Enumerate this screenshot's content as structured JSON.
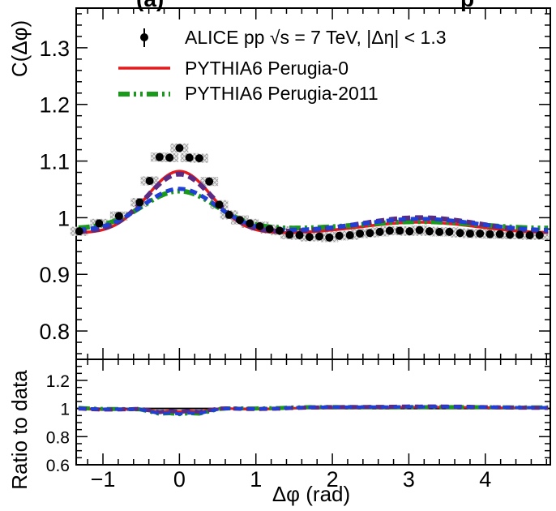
{
  "chart_data": {
    "type": "line",
    "title": "(a)",
    "title_suffix": "p",
    "xlabel": "Δφ (rad)",
    "ylabel": "C(Δφ)",
    "ylabel_ratio": "Ratio to data",
    "xlim": [
      -1.35,
      4.85
    ],
    "ylim": [
      0.75,
      1.37
    ],
    "ylim_ratio": [
      0.6,
      1.35
    ],
    "grid": false,
    "legend_position": "top",
    "xticks": [
      -1,
      0,
      1,
      2,
      3,
      4
    ],
    "xtick_labels": [
      "−1",
      "0",
      "1",
      "2",
      "3",
      "4"
    ],
    "yticks": [
      0.8,
      0.9,
      1.0,
      1.1,
      1.2,
      1.3
    ],
    "ytick_labels": [
      "0.8",
      "0.9",
      "1",
      "1.1",
      "1.2",
      "1.3"
    ],
    "yticks_ratio": [
      0.6,
      0.8,
      1.0,
      1.2
    ],
    "ytick_labels_ratio": [
      "0.6",
      "0.8",
      "1",
      "1.2"
    ],
    "legend": [
      {
        "label": "ALICE pp √s = 7 TeV, |Δη| < 1.3",
        "style": "marker",
        "color": "#000000"
      },
      {
        "label": "PYTHIA6 Perugia-0",
        "style": "solid",
        "color": "#e41a1c"
      },
      {
        "label": "PYTHIA6 Perugia-2011",
        "style": "dashdot",
        "color": "#1a9a1a"
      }
    ],
    "data": {
      "name": "ALICE pp √s = 7 TeV, |Δη| < 1.3",
      "x": [
        -1.31,
        -1.05,
        -0.79,
        -0.52,
        -0.39,
        -0.26,
        -0.13,
        0.0,
        0.13,
        0.26,
        0.39,
        0.52,
        0.65,
        0.79,
        0.92,
        1.05,
        1.18,
        1.31,
        1.44,
        1.57,
        1.7,
        1.83,
        1.96,
        2.09,
        2.23,
        2.36,
        2.49,
        2.62,
        2.75,
        2.88,
        3.01,
        3.14,
        3.27,
        3.4,
        3.53,
        3.67,
        3.8,
        3.93,
        4.06,
        4.19,
        4.32,
        4.45,
        4.58,
        4.71
      ],
      "y": [
        0.976,
        0.99,
        1.003,
        1.027,
        1.065,
        1.107,
        1.106,
        1.123,
        1.106,
        1.105,
        1.064,
        1.023,
        1.005,
        0.996,
        0.99,
        0.985,
        0.98,
        0.977,
        0.97,
        0.969,
        0.966,
        0.967,
        0.965,
        0.968,
        0.969,
        0.972,
        0.973,
        0.975,
        0.977,
        0.977,
        0.976,
        0.978,
        0.976,
        0.975,
        0.975,
        0.973,
        0.972,
        0.972,
        0.971,
        0.971,
        0.97,
        0.97,
        0.969,
        0.969
      ],
      "sys": 0.008
    },
    "series": [
      {
        "name": "PYTHIA6 Perugia-0",
        "color": "#e41a1c",
        "dash": "",
        "width": 3.5,
        "amp1": 0.11,
        "sig1": 0.42,
        "amp2": 0.02,
        "sig2": 0.75,
        "base": 0.972
      },
      {
        "name": "PYTHIA6 Perugia-2011",
        "color": "#1a9a1a",
        "dash": "14,5,3,5,3,5",
        "width": 6,
        "amp1": 0.067,
        "sig1": 0.48,
        "amp2": 0.013,
        "sig2": 0.75,
        "base": 0.98
      },
      {
        "name": "",
        "color": "#5b2a82",
        "dash": "10,6",
        "width": 6,
        "amp1": 0.103,
        "sig1": 0.43,
        "amp2": 0.026,
        "sig2": 0.75,
        "base": 0.974
      },
      {
        "name": "",
        "color": "#1f3fd6",
        "dash": "9,6",
        "width": 5,
        "amp1": 0.075,
        "sig1": 0.48,
        "amp2": 0.022,
        "sig2": 0.75,
        "base": 0.976
      }
    ]
  }
}
